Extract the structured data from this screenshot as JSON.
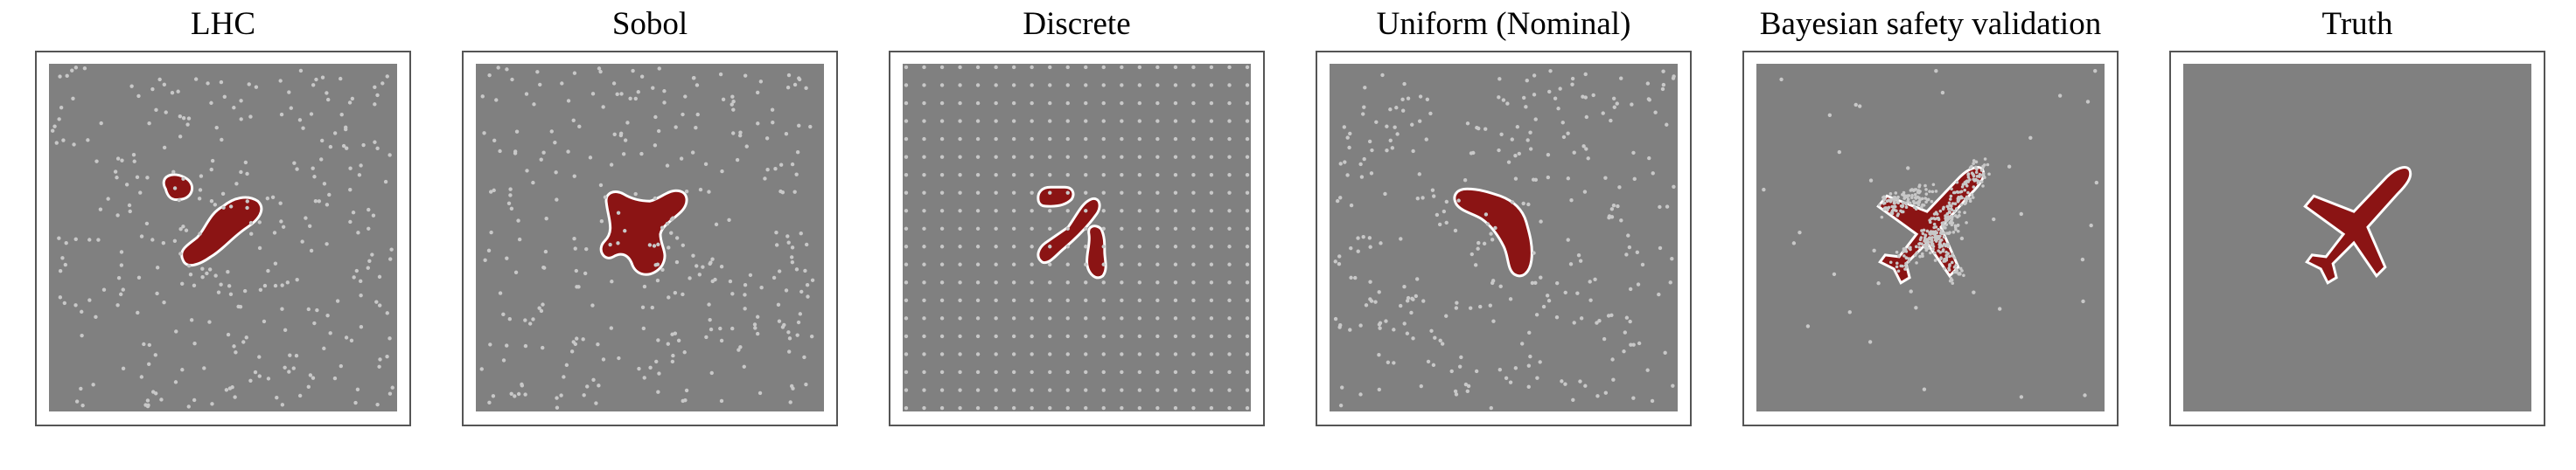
{
  "panels": [
    {
      "id": "lhc",
      "title": "LHC"
    },
    {
      "id": "sobol",
      "title": "Sobol"
    },
    {
      "id": "discrete",
      "title": "Discrete"
    },
    {
      "id": "uniform",
      "title": "Uniform (Nominal)"
    },
    {
      "id": "bsv",
      "title": "Bayesian safety validation"
    },
    {
      "id": "truth",
      "title": "Truth"
    }
  ],
  "colors": {
    "background": "#808080",
    "failure_region": "#8b1414",
    "boundary": "#ffffff",
    "samples": "#c8c8c8",
    "frame": "#555555"
  }
}
